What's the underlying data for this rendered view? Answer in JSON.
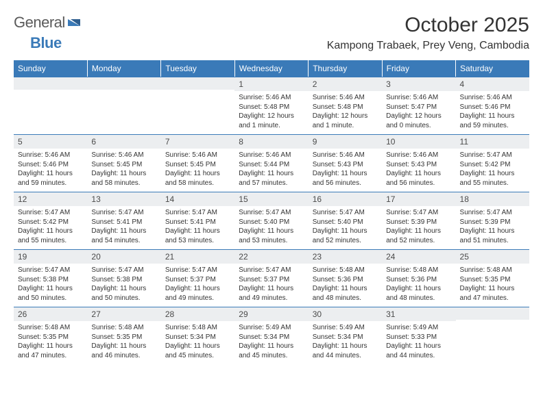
{
  "logo": {
    "word1": "General",
    "word2": "Blue"
  },
  "title": "October 2025",
  "location": "Kampong Trabaek, Prey Veng, Cambodia",
  "colors": {
    "brand_blue": "#3a7ab8",
    "header_text": "#ffffff",
    "daynum_bg": "#eceef0",
    "text": "#333333",
    "logo_gray": "#5a5a5a"
  },
  "day_headers": [
    "Sunday",
    "Monday",
    "Tuesday",
    "Wednesday",
    "Thursday",
    "Friday",
    "Saturday"
  ],
  "weeks": [
    [
      {
        "n": "",
        "sr": "",
        "ss": "",
        "dl": ""
      },
      {
        "n": "",
        "sr": "",
        "ss": "",
        "dl": ""
      },
      {
        "n": "",
        "sr": "",
        "ss": "",
        "dl": ""
      },
      {
        "n": "1",
        "sr": "5:46 AM",
        "ss": "5:48 PM",
        "dl": "12 hours and 1 minute."
      },
      {
        "n": "2",
        "sr": "5:46 AM",
        "ss": "5:48 PM",
        "dl": "12 hours and 1 minute."
      },
      {
        "n": "3",
        "sr": "5:46 AM",
        "ss": "5:47 PM",
        "dl": "12 hours and 0 minutes."
      },
      {
        "n": "4",
        "sr": "5:46 AM",
        "ss": "5:46 PM",
        "dl": "11 hours and 59 minutes."
      }
    ],
    [
      {
        "n": "5",
        "sr": "5:46 AM",
        "ss": "5:46 PM",
        "dl": "11 hours and 59 minutes."
      },
      {
        "n": "6",
        "sr": "5:46 AM",
        "ss": "5:45 PM",
        "dl": "11 hours and 58 minutes."
      },
      {
        "n": "7",
        "sr": "5:46 AM",
        "ss": "5:45 PM",
        "dl": "11 hours and 58 minutes."
      },
      {
        "n": "8",
        "sr": "5:46 AM",
        "ss": "5:44 PM",
        "dl": "11 hours and 57 minutes."
      },
      {
        "n": "9",
        "sr": "5:46 AM",
        "ss": "5:43 PM",
        "dl": "11 hours and 56 minutes."
      },
      {
        "n": "10",
        "sr": "5:46 AM",
        "ss": "5:43 PM",
        "dl": "11 hours and 56 minutes."
      },
      {
        "n": "11",
        "sr": "5:47 AM",
        "ss": "5:42 PM",
        "dl": "11 hours and 55 minutes."
      }
    ],
    [
      {
        "n": "12",
        "sr": "5:47 AM",
        "ss": "5:42 PM",
        "dl": "11 hours and 55 minutes."
      },
      {
        "n": "13",
        "sr": "5:47 AM",
        "ss": "5:41 PM",
        "dl": "11 hours and 54 minutes."
      },
      {
        "n": "14",
        "sr": "5:47 AM",
        "ss": "5:41 PM",
        "dl": "11 hours and 53 minutes."
      },
      {
        "n": "15",
        "sr": "5:47 AM",
        "ss": "5:40 PM",
        "dl": "11 hours and 53 minutes."
      },
      {
        "n": "16",
        "sr": "5:47 AM",
        "ss": "5:40 PM",
        "dl": "11 hours and 52 minutes."
      },
      {
        "n": "17",
        "sr": "5:47 AM",
        "ss": "5:39 PM",
        "dl": "11 hours and 52 minutes."
      },
      {
        "n": "18",
        "sr": "5:47 AM",
        "ss": "5:39 PM",
        "dl": "11 hours and 51 minutes."
      }
    ],
    [
      {
        "n": "19",
        "sr": "5:47 AM",
        "ss": "5:38 PM",
        "dl": "11 hours and 50 minutes."
      },
      {
        "n": "20",
        "sr": "5:47 AM",
        "ss": "5:38 PM",
        "dl": "11 hours and 50 minutes."
      },
      {
        "n": "21",
        "sr": "5:47 AM",
        "ss": "5:37 PM",
        "dl": "11 hours and 49 minutes."
      },
      {
        "n": "22",
        "sr": "5:47 AM",
        "ss": "5:37 PM",
        "dl": "11 hours and 49 minutes."
      },
      {
        "n": "23",
        "sr": "5:48 AM",
        "ss": "5:36 PM",
        "dl": "11 hours and 48 minutes."
      },
      {
        "n": "24",
        "sr": "5:48 AM",
        "ss": "5:36 PM",
        "dl": "11 hours and 48 minutes."
      },
      {
        "n": "25",
        "sr": "5:48 AM",
        "ss": "5:35 PM",
        "dl": "11 hours and 47 minutes."
      }
    ],
    [
      {
        "n": "26",
        "sr": "5:48 AM",
        "ss": "5:35 PM",
        "dl": "11 hours and 47 minutes."
      },
      {
        "n": "27",
        "sr": "5:48 AM",
        "ss": "5:35 PM",
        "dl": "11 hours and 46 minutes."
      },
      {
        "n": "28",
        "sr": "5:48 AM",
        "ss": "5:34 PM",
        "dl": "11 hours and 45 minutes."
      },
      {
        "n": "29",
        "sr": "5:49 AM",
        "ss": "5:34 PM",
        "dl": "11 hours and 45 minutes."
      },
      {
        "n": "30",
        "sr": "5:49 AM",
        "ss": "5:34 PM",
        "dl": "11 hours and 44 minutes."
      },
      {
        "n": "31",
        "sr": "5:49 AM",
        "ss": "5:33 PM",
        "dl": "11 hours and 44 minutes."
      },
      {
        "n": "",
        "sr": "",
        "ss": "",
        "dl": ""
      }
    ]
  ],
  "labels": {
    "sunrise": "Sunrise:",
    "sunset": "Sunset:",
    "daylight": "Daylight:"
  }
}
